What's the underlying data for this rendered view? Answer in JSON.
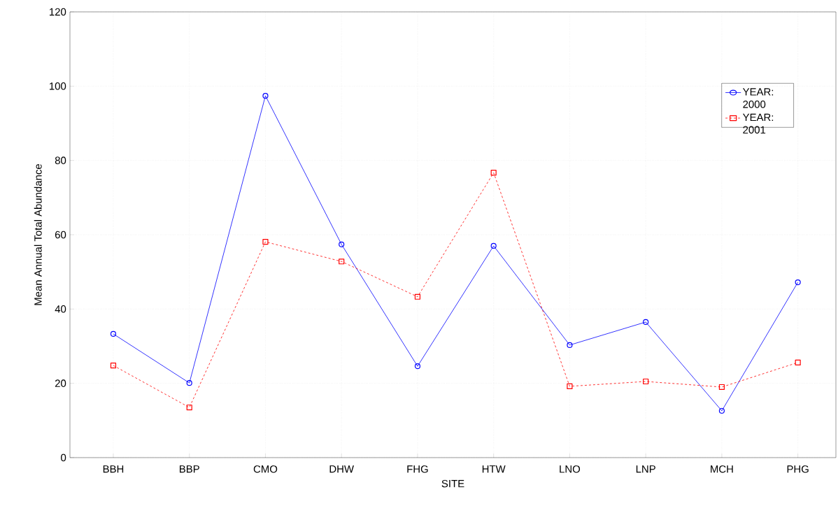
{
  "chart_data": {
    "type": "line",
    "xlabel": "SITE",
    "ylabel": "Mean Annual Total Abundance",
    "categories": [
      "BBH",
      "BBP",
      "CMO",
      "DHW",
      "FHG",
      "HTW",
      "LNO",
      "LNP",
      "MCH",
      "PHG"
    ],
    "series": [
      {
        "name": "YEAR: 2000",
        "color": "#0000ff",
        "marker": "circle",
        "line_style": "solid",
        "values": [
          33.3,
          20.1,
          97.4,
          57.4,
          24.6,
          57.0,
          30.3,
          36.5,
          12.6,
          47.2
        ]
      },
      {
        "name": "YEAR: 2001",
        "color": "#ff0000",
        "marker": "square",
        "line_style": "dashed",
        "values": [
          24.8,
          13.5,
          58.1,
          52.8,
          43.3,
          76.7,
          19.2,
          20.5,
          19.0,
          25.6
        ]
      }
    ],
    "ylim": [
      0,
      120
    ],
    "yticks": [
      0,
      20,
      40,
      60,
      80,
      100,
      120
    ],
    "grid": true,
    "legend": "top right"
  }
}
